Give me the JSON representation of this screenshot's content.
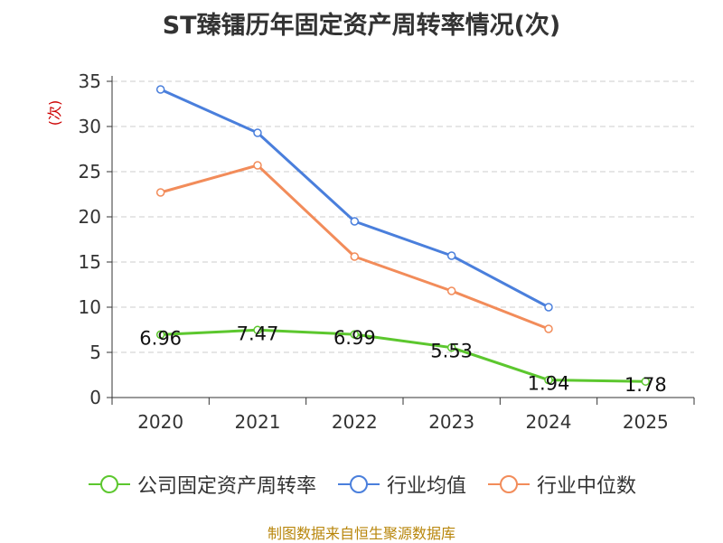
{
  "title": "ST臻镭历年固定资产周转率情况(次)",
  "source": "制图数据来自恒生聚源数据库",
  "colors": {
    "company": "#5cc72e",
    "industry_avg": "#4a7fdc",
    "industry_median": "#f28c5a",
    "ylabel": "#cc0000",
    "source": "#b8860b"
  },
  "chart_data": {
    "type": "line",
    "title": "ST臻镭历年固定资产周转率情况(次)",
    "xlabel": "",
    "ylabel": "(次)",
    "categories": [
      "2020",
      "2021",
      "2022",
      "2023",
      "2024",
      "2025"
    ],
    "yticks": [
      "0",
      "5",
      "10",
      "15",
      "20",
      "25",
      "30",
      "35"
    ],
    "ylim": [
      0,
      35
    ],
    "grid": true,
    "legend_position": "bottom",
    "series": [
      {
        "key": "company",
        "name": "公司固定资产周转率",
        "values": [
          6.96,
          7.47,
          6.99,
          5.53,
          1.94,
          1.78
        ],
        "labels": [
          "6.96",
          "7.47",
          "6.99",
          "5.53",
          "1.94",
          "1.78"
        ],
        "color": "#5cc72e"
      },
      {
        "key": "industry_avg",
        "name": "行业均值",
        "values": [
          34.1,
          29.3,
          19.5,
          15.7,
          10.0,
          null
        ],
        "color": "#4a7fdc"
      },
      {
        "key": "industry_median",
        "name": "行业中位数",
        "values": [
          22.7,
          25.7,
          15.6,
          11.8,
          7.6,
          null
        ],
        "color": "#f28c5a"
      }
    ]
  }
}
